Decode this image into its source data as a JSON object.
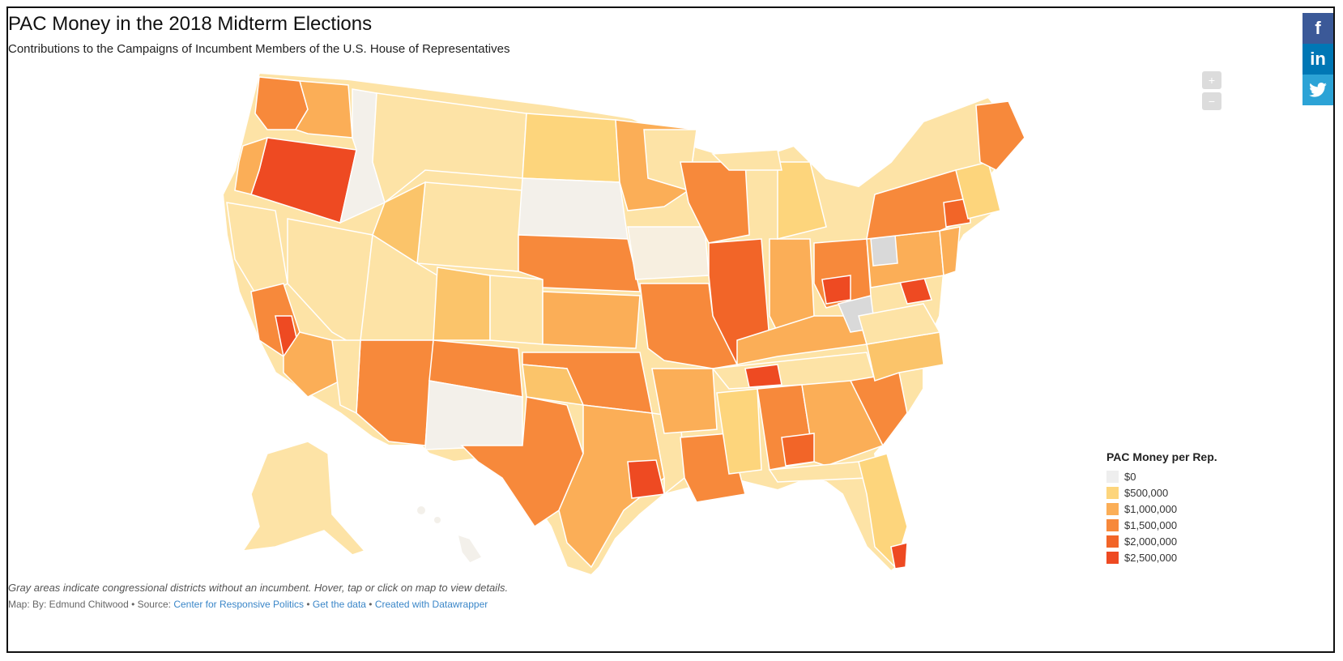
{
  "title": "PAC Money in the 2018 Midterm Elections",
  "subtitle": "Contributions to the Campaigns of Incumbent Members of the U.S. House of Representatives",
  "share": {
    "facebook_icon": "f",
    "linkedin_icon": "in",
    "twitter_icon": "bird-icon"
  },
  "zoom": {
    "in_label": "+",
    "out_label": "−"
  },
  "legend": {
    "title": "PAC Money per Rep.",
    "items": [
      {
        "label": "$0",
        "color": "#eeeeee"
      },
      {
        "label": "$500,000",
        "color": "#fdd57c"
      },
      {
        "label": "$1,000,000",
        "color": "#fbae57"
      },
      {
        "label": "$1,500,000",
        "color": "#f7893b"
      },
      {
        "label": "$2,000,000",
        "color": "#f26528"
      },
      {
        "label": "$2,500,000",
        "color": "#ee4a22"
      }
    ]
  },
  "footer": {
    "note": "Gray areas indicate congressional districts without an incumbent. Hover, tap or click on map to view details.",
    "credit_prefix": "Map: By: Edmund Chitwood • Source: ",
    "source_link": "Center for Responsive Politics",
    "sep1": " • ",
    "data_link": "Get the data",
    "sep2": " • ",
    "datawrapper_link": "Created with Datawrapper"
  },
  "colors": {
    "facebook": "#3b5998",
    "linkedin": "#0077b5",
    "twitter": "#2ca3d6",
    "link": "#3a86c8"
  }
}
